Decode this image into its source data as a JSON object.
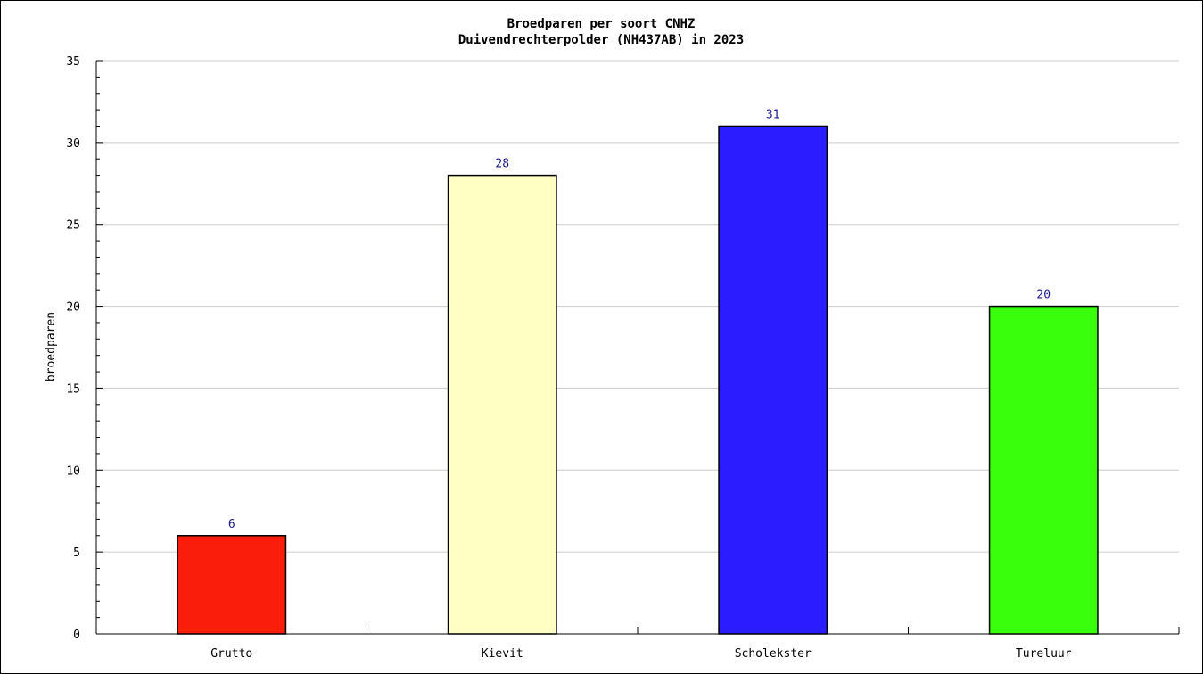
{
  "chart_data": {
    "type": "bar",
    "title": "Broedparen per soort CNHZ",
    "subtitle": "Duivendrechterpolder (NH437AB) in 2023",
    "xlabel": "",
    "ylabel": "broedparen",
    "categories": [
      "Grutto",
      "Kievit",
      "Scholekster",
      "Tureluur"
    ],
    "values": [
      6,
      28,
      31,
      20
    ],
    "colors": [
      "#fb1d0c",
      "#ffffc4",
      "#2b1cff",
      "#39ff0c"
    ],
    "ylim": [
      0,
      35
    ],
    "yticks": [
      0,
      5,
      10,
      15,
      20,
      25,
      30,
      35
    ],
    "grid": true,
    "legend": "none"
  }
}
